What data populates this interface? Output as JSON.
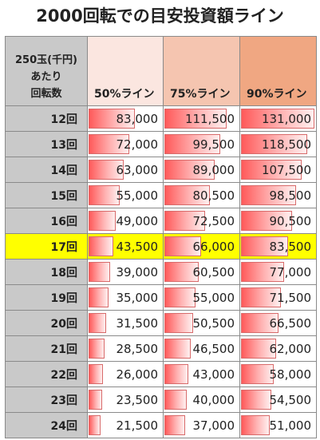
{
  "title": "2000回転での目安投資額ライン",
  "header": {
    "label_lines": [
      "250玉(千円)",
      "あたり",
      "回転数"
    ],
    "columns": [
      {
        "label": "50%ライン",
        "color": "#fbe6e0"
      },
      {
        "label": "75%ライン",
        "color": "#f5c5b0"
      },
      {
        "label": "90%ライン",
        "color": "#f0a782"
      }
    ]
  },
  "highlight_color": "#ffff00",
  "bar_max": 131000,
  "rows": [
    {
      "label": "12回",
      "values": [
        "83,000",
        "111,500",
        "131,000"
      ],
      "nums": [
        83000,
        111500,
        131000
      ]
    },
    {
      "label": "13回",
      "values": [
        "72,000",
        "99,500",
        "118,500"
      ],
      "nums": [
        72000,
        99500,
        118500
      ]
    },
    {
      "label": "14回",
      "values": [
        "63,000",
        "89,000",
        "107,500"
      ],
      "nums": [
        63000,
        89000,
        107500
      ]
    },
    {
      "label": "15回",
      "values": [
        "55,000",
        "80,500",
        "98,500"
      ],
      "nums": [
        55000,
        80500,
        98500
      ]
    },
    {
      "label": "16回",
      "values": [
        "49,000",
        "72,500",
        "90,500"
      ],
      "nums": [
        49000,
        72500,
        90500
      ]
    },
    {
      "label": "17回",
      "values": [
        "43,500",
        "66,000",
        "83,500"
      ],
      "nums": [
        43500,
        66000,
        83500
      ],
      "highlight": true
    },
    {
      "label": "18回",
      "values": [
        "39,000",
        "60,500",
        "77,000"
      ],
      "nums": [
        39000,
        60500,
        77000
      ]
    },
    {
      "label": "19回",
      "values": [
        "35,000",
        "55,000",
        "71,500"
      ],
      "nums": [
        35000,
        55000,
        71500
      ]
    },
    {
      "label": "20回",
      "values": [
        "31,500",
        "50,500",
        "66,500"
      ],
      "nums": [
        31500,
        50500,
        66500
      ]
    },
    {
      "label": "21回",
      "values": [
        "28,500",
        "46,500",
        "62,000"
      ],
      "nums": [
        28500,
        46500,
        62000
      ]
    },
    {
      "label": "22回",
      "values": [
        "26,000",
        "43,000",
        "58,000"
      ],
      "nums": [
        26000,
        43000,
        58000
      ]
    },
    {
      "label": "23回",
      "values": [
        "23,500",
        "40,000",
        "54,500"
      ],
      "nums": [
        23500,
        40000,
        54500
      ]
    },
    {
      "label": "24回",
      "values": [
        "21,500",
        "37,000",
        "51,000"
      ],
      "nums": [
        21500,
        37000,
        51000
      ]
    }
  ]
}
